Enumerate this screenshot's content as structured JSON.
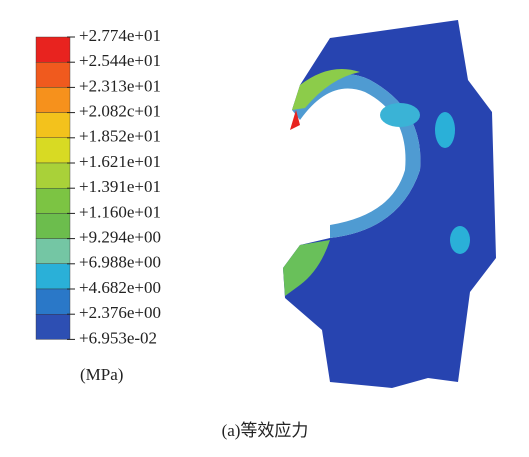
{
  "legend": {
    "labels": [
      "+2.774e+01",
      "+2.544e+01",
      "+2.313e+01",
      "+2.082c+01",
      "+1.852e+01",
      "+1.621e+01",
      "+1.391e+01",
      "+1.160e+01",
      "+9.294e+00",
      "+6.988e+00",
      "+4.682e+00",
      "+2.376e+00",
      "+6.953e-02"
    ],
    "colors": [
      "#e8231f",
      "#f05a1e",
      "#f6911c",
      "#f3c21c",
      "#d8da23",
      "#a9d139",
      "#7cc443",
      "#6cbd4d",
      "#74c6a4",
      "#2ab0d8",
      "#2a78c8",
      "#2d4fb3"
    ],
    "unit": "(MPa)"
  },
  "caption": "(a)等效应力"
}
